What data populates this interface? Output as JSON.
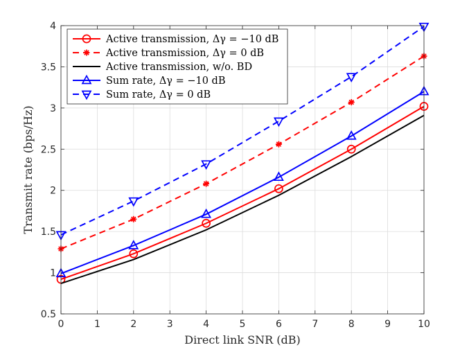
{
  "chart_data": {
    "type": "line",
    "xlabel": "Direct link SNR (dB)",
    "ylabel": "Transmit rate (bps/Hz)",
    "xlim": [
      0,
      10
    ],
    "ylim": [
      0.5,
      4
    ],
    "xticks": [
      "0",
      "1",
      "2",
      "3",
      "4",
      "5",
      "6",
      "7",
      "8",
      "9",
      "10"
    ],
    "yticks": [
      "0.5",
      "1",
      "1.5",
      "2",
      "2.5",
      "3",
      "3.5",
      "4"
    ],
    "grid": true,
    "legend_position": "top-left",
    "x": [
      0,
      2,
      4,
      6,
      8,
      10
    ],
    "series": [
      {
        "name": "Active transmission, Δγ = −10 dB",
        "values": [
          0.92,
          1.23,
          1.6,
          2.02,
          2.5,
          3.02
        ],
        "color": "#ff0000",
        "line": "solid",
        "marker": "circle"
      },
      {
        "name": "Active transmission, Δγ = 0 dB",
        "values": [
          1.29,
          1.65,
          2.08,
          2.56,
          3.07,
          3.63
        ],
        "color": "#ff0000",
        "line": "dashed",
        "marker": "asterisk"
      },
      {
        "name": "Active transmission, w/o. BD",
        "values": [
          0.87,
          1.16,
          1.52,
          1.94,
          2.41,
          2.91
        ],
        "color": "#000000",
        "line": "solid",
        "marker": "none"
      },
      {
        "name": "Sum rate, Δγ = −10 dB",
        "values": [
          0.99,
          1.33,
          1.71,
          2.16,
          2.66,
          3.2
        ],
        "color": "#0000ff",
        "line": "solid",
        "marker": "triangle-up"
      },
      {
        "name": "Sum rate, Δγ = 0 dB",
        "values": [
          1.46,
          1.87,
          2.32,
          2.84,
          3.38,
          3.99
        ],
        "color": "#0000ff",
        "line": "dashed",
        "marker": "triangle-down"
      }
    ]
  }
}
